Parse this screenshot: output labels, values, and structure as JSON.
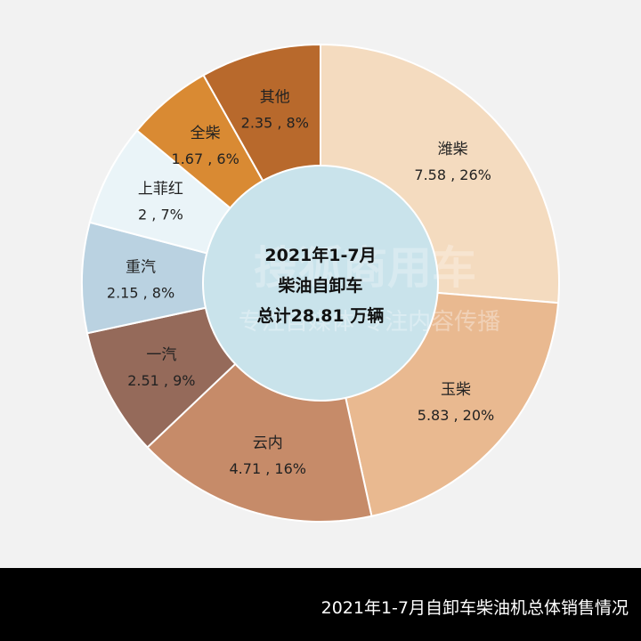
{
  "chart_data": {
    "type": "pie",
    "donut": true,
    "start": "12 o'clock, clockwise",
    "center_text": [
      "2021年1-7月",
      "柴油自卸车",
      "总计28.81 万辆"
    ],
    "slices": [
      {
        "label": "潍柴",
        "value": 7.58,
        "percent": "26%",
        "color": "#f4dbbf"
      },
      {
        "label": "玉柴",
        "value": 5.83,
        "percent": "20%",
        "color": "#e9b990"
      },
      {
        "label": "云内",
        "value": 4.71,
        "percent": "16%",
        "color": "#c68b69"
      },
      {
        "label": "一汽",
        "value": 2.51,
        "percent": "9%",
        "color": "#956a5a"
      },
      {
        "label": "重汽",
        "value": 2.15,
        "percent": "8%",
        "color": "#bad2e1"
      },
      {
        "label": "上菲红",
        "value": 2,
        "percent": "7%",
        "color": "#eaf4f8"
      },
      {
        "label": "全柴",
        "value": 1.67,
        "percent": "6%",
        "color": "#d98a33"
      },
      {
        "label": "其他",
        "value": 2.35,
        "percent": "8%",
        "color": "#b8692c"
      }
    ],
    "center_color": "#c9e3eb"
  },
  "watermark": {
    "line1": "搜狐商用车",
    "line2": "专注自媒体 专注内容传播"
  },
  "footer": {
    "caption": "2021年1-7月自卸车柴油机总体销售情况"
  }
}
